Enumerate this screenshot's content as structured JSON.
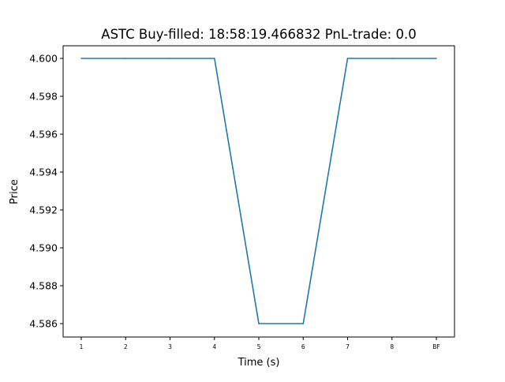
{
  "chart_data": {
    "type": "line",
    "title": "ASTC  Buy-filled:  18:58:19.466832  PnL-trade:  0.0",
    "xlabel": "Time (s)",
    "ylabel": "Price",
    "categories": [
      "1",
      "2",
      "3",
      "4",
      "5",
      "6",
      "7",
      "8",
      "BF"
    ],
    "series": [
      {
        "values": [
          4.6,
          4.6,
          4.6,
          4.6,
          4.586,
          4.586,
          4.6,
          4.6,
          4.6
        ]
      }
    ],
    "yticks": [
      "4.586",
      "4.588",
      "4.590",
      "4.592",
      "4.594",
      "4.596",
      "4.598",
      "4.600"
    ],
    "ylim": [
      4.5853,
      4.6007
    ],
    "grid": false,
    "line_color": "#1f77b4"
  }
}
